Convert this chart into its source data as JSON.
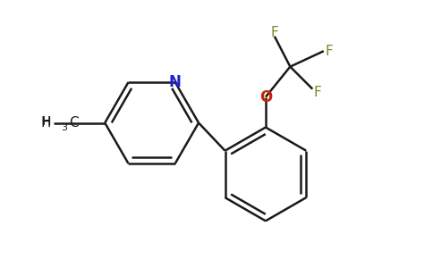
{
  "background_color": "#ffffff",
  "bond_color": "#1a1a1a",
  "nitrogen_color": "#2222cc",
  "oxygen_color": "#cc2200",
  "fluorine_color": "#6b8e23",
  "line_width": 1.8,
  "figsize": [
    4.84,
    3.0
  ],
  "dpi": 100,
  "xlim": [
    0,
    9.5
  ],
  "ylim": [
    0,
    5.9
  ]
}
